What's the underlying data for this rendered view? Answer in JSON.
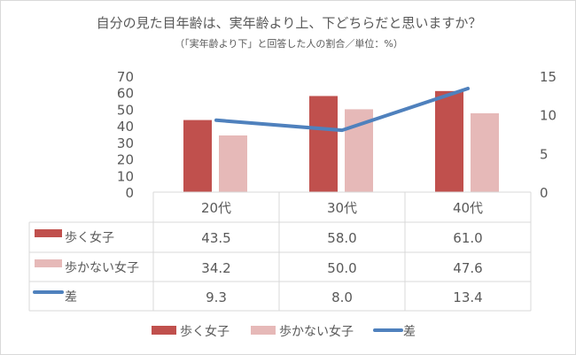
{
  "chart_data": {
    "type": "bar",
    "title": "自分の見た目年齢は、実年齢より上、下どちらだと思いますか？",
    "subtitle": "（「実年齢より下」と回答した人の割合／単位：%）",
    "categories": [
      "20代",
      "30代",
      "40代"
    ],
    "series": [
      {
        "name": "歩く女子",
        "type": "bar",
        "axis": "left",
        "color": "#c0504d",
        "values": [
          43.5,
          58.0,
          61.0
        ],
        "labels": [
          "43.5",
          "58.0",
          "61.0"
        ]
      },
      {
        "name": "歩かない女子",
        "type": "bar",
        "axis": "left",
        "color": "#e6b9b8",
        "values": [
          34.2,
          50.0,
          47.6
        ],
        "labels": [
          "34.2",
          "50.0",
          "47.6"
        ]
      },
      {
        "name": "差",
        "type": "line",
        "axis": "right",
        "color": "#4f81bd",
        "values": [
          9.3,
          8.0,
          13.4
        ],
        "labels": [
          "9.3",
          "8.0",
          "13.4"
        ]
      }
    ],
    "ylim": [
      0,
      70
    ],
    "yticks": [
      "0",
      "10",
      "20",
      "30",
      "40",
      "50",
      "60",
      "70"
    ],
    "y2lim": [
      0,
      15
    ],
    "y2ticks": [
      "0",
      "5",
      "10",
      "15"
    ],
    "grid": false,
    "data_table": true,
    "legend": "bottom"
  }
}
